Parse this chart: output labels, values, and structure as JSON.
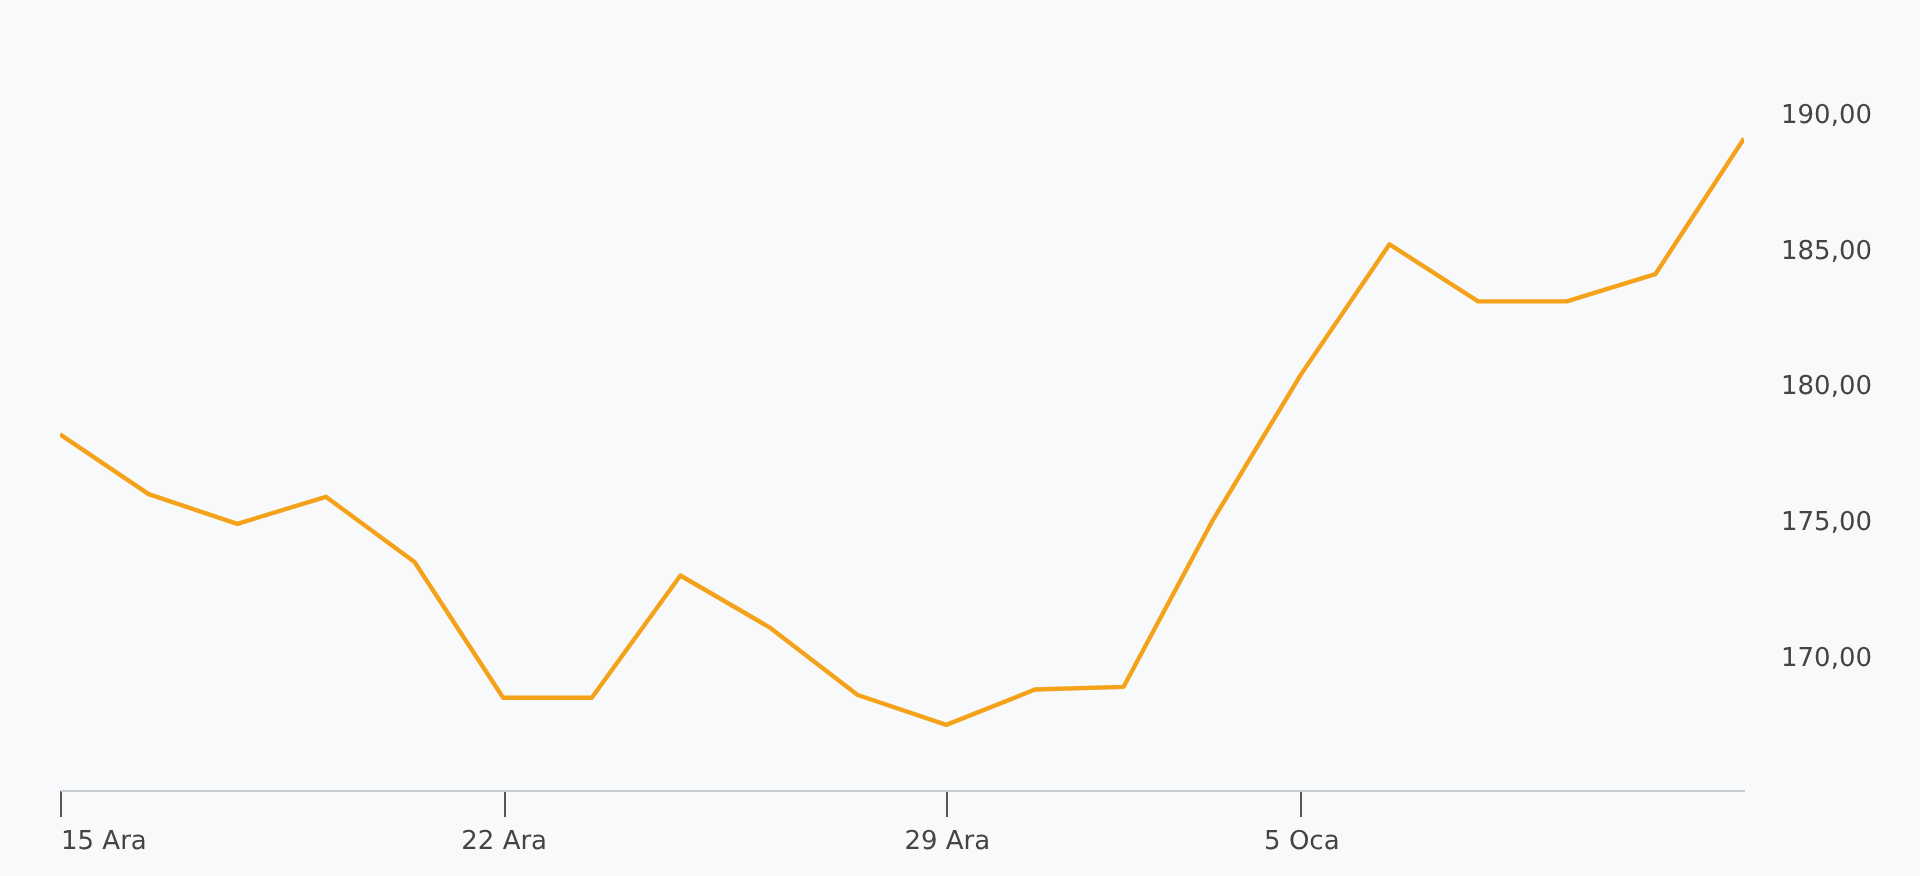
{
  "chart_data": {
    "type": "line",
    "categories": [
      "15 Ara",
      null,
      null,
      null,
      null,
      "22 Ara",
      null,
      null,
      null,
      null,
      "29 Ara",
      null,
      null,
      null,
      "5 Oca",
      null,
      null,
      null,
      null,
      null
    ],
    "values": [
      178.2,
      176.0,
      174.9,
      175.9,
      173.5,
      168.5,
      168.5,
      173.0,
      171.1,
      168.6,
      167.5,
      168.8,
      168.9,
      175.0,
      180.4,
      185.2,
      183.1,
      183.1,
      184.1,
      189.1
    ],
    "color": "#f5a21b",
    "ylim": [
      165.1,
      190
    ],
    "yticks": [
      {
        "value": 170,
        "label": "170,00"
      },
      {
        "value": 175,
        "label": "175,00"
      },
      {
        "value": 180,
        "label": "180,00"
      },
      {
        "value": 185,
        "label": "185,00"
      },
      {
        "value": 190,
        "label": "190,00"
      }
    ],
    "grid": false
  }
}
